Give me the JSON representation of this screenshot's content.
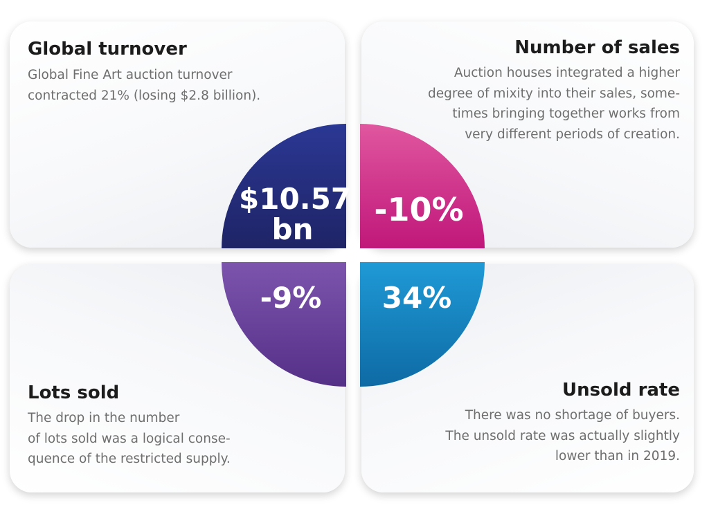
{
  "sections": {
    "global_turnover": {
      "title": "Global turnover",
      "lines": [
        "Global Fine Art auction turnover",
        "contracted 21% (losing $2.8 billion)."
      ],
      "value_line1": "$10.57",
      "value_line2": "bn",
      "color": "#27327f"
    },
    "number_of_sales": {
      "title": "Number of sales",
      "lines": [
        "Auction houses integrated a higher",
        "degree of mixity into their sales, some-",
        "times bringing together works from",
        "very different periods of creation."
      ],
      "value": "-10%",
      "color": "#d4338d"
    },
    "lots_sold": {
      "title": "Lots sold",
      "lines": [
        "The drop in the number",
        "of lots sold was a logical conse-",
        "quence of the restricted supply."
      ],
      "value": "-9%",
      "color": "#6b3c97"
    },
    "unsold_rate": {
      "title": "Unsold rate",
      "lines": [
        "There was no shortage of buyers.",
        "The unsold rate was actually slightly",
        "lower than in 2019."
      ],
      "value": "34%",
      "color": "#1488c6"
    }
  }
}
